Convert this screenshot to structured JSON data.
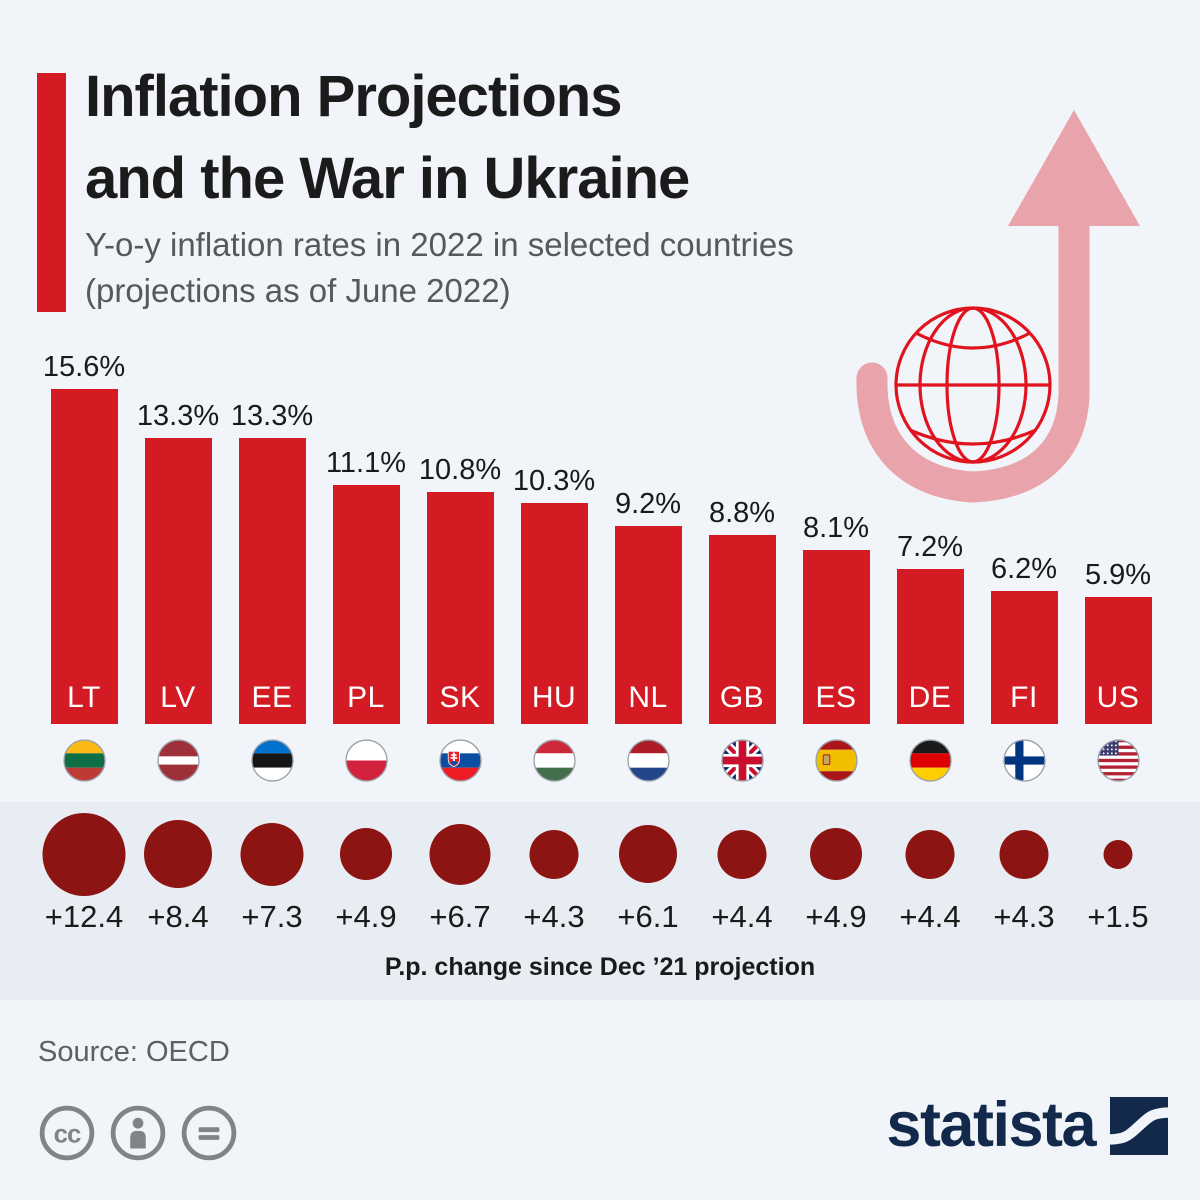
{
  "header": {
    "title_line1": "Inflation Projections",
    "title_line2": "and the War in Ukraine",
    "subtitle_line1": "Y-o-y inflation rates in 2022 in selected countries",
    "subtitle_line2": "(projections as of June 2022)"
  },
  "chart_data": {
    "type": "bar",
    "title": "Inflation Projections and the War in Ukraine",
    "subtitle": "Y-o-y inflation rates in 2022 in selected countries (projections as of June 2022)",
    "categories": [
      "LT",
      "LV",
      "EE",
      "PL",
      "SK",
      "HU",
      "NL",
      "GB",
      "ES",
      "DE",
      "FI",
      "US"
    ],
    "series": [
      {
        "name": "Y-o-y inflation rate 2022 (projection as of June 2022)",
        "unit": "%",
        "values": [
          15.6,
          13.3,
          13.3,
          11.1,
          10.8,
          10.3,
          9.2,
          8.8,
          8.1,
          7.2,
          6.2,
          5.9
        ],
        "labels": [
          "15.6%",
          "13.3%",
          "13.3%",
          "11.1%",
          "10.8%",
          "10.3%",
          "9.2%",
          "8.8%",
          "8.1%",
          "7.2%",
          "6.2%",
          "5.9%"
        ]
      },
      {
        "name": "P.p. change since Dec ’21 projection",
        "unit": "p.p.",
        "values": [
          12.4,
          8.4,
          7.3,
          4.9,
          6.7,
          4.3,
          6.1,
          4.4,
          4.9,
          4.4,
          4.3,
          1.5
        ],
        "labels": [
          "+12.4",
          "+8.4",
          "+7.3",
          "+4.9",
          "+6.7",
          "+4.3",
          "+6.1",
          "+4.4",
          "+4.9",
          "+4.4",
          "+4.3",
          "+1.5"
        ]
      }
    ],
    "bubble_caption": "P.p. change since Dec ’21 projection",
    "ylim": [
      0,
      16
    ],
    "grid": false,
    "legend_position": "none",
    "colors": {
      "bar": "#d41b23",
      "bubble": "#8c1412",
      "accent": "#d41b23",
      "arrow_pink": "#e9a3ab",
      "globe_red": "#e0131f",
      "page_bg": "#f1f4f8",
      "band_bg": "#e8ecf3",
      "brand_navy": "#12294b"
    }
  },
  "footer": {
    "source": "Source: OECD",
    "brand": "statista",
    "license_icons": [
      "cc-icon",
      "attribution-icon",
      "no-derivatives-icon"
    ]
  }
}
